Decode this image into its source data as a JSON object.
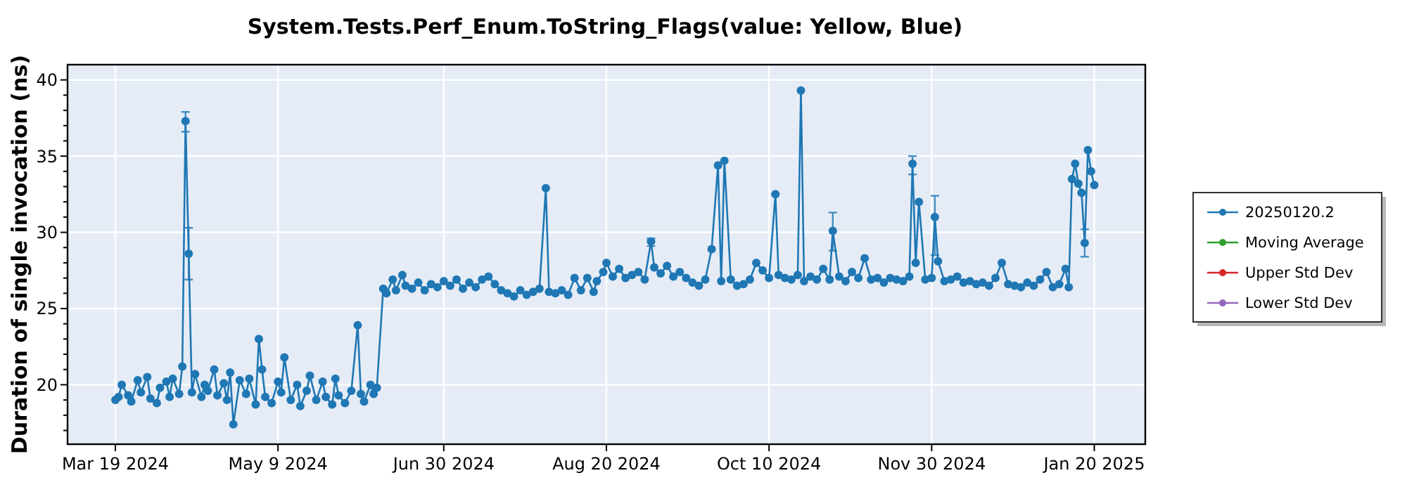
{
  "chart_data": {
    "type": "line",
    "title": "System.Tests.Perf_Enum.ToString_Flags(value: Yellow, Blue)",
    "ylabel": "Duration of single invocation (ns)",
    "x": [
      "2024-03-19",
      "2024-03-20",
      "2024-03-21",
      "2024-03-23",
      "2024-03-24",
      "2024-03-26",
      "2024-03-27",
      "2024-03-29",
      "2024-03-30",
      "2024-04-01",
      "2024-04-02",
      "2024-04-04",
      "2024-04-05",
      "2024-04-06",
      "2024-04-08",
      "2024-04-09",
      "2024-04-10",
      "2024-04-11",
      "2024-04-12",
      "2024-04-13",
      "2024-04-15",
      "2024-04-16",
      "2024-04-17",
      "2024-04-19",
      "2024-04-20",
      "2024-04-22",
      "2024-04-23",
      "2024-04-24",
      "2024-04-25",
      "2024-04-27",
      "2024-04-29",
      "2024-04-30",
      "2024-05-02",
      "2024-05-03",
      "2024-05-04",
      "2024-05-05",
      "2024-05-07",
      "2024-05-09",
      "2024-05-10",
      "2024-05-11",
      "2024-05-13",
      "2024-05-15",
      "2024-05-16",
      "2024-05-18",
      "2024-05-19",
      "2024-05-21",
      "2024-05-23",
      "2024-05-24",
      "2024-05-26",
      "2024-05-27",
      "2024-05-28",
      "2024-05-30",
      "2024-06-01",
      "2024-06-03",
      "2024-06-04",
      "2024-06-05",
      "2024-06-07",
      "2024-06-08",
      "2024-06-09",
      "2024-06-11",
      "2024-06-12",
      "2024-06-14",
      "2024-06-15",
      "2024-06-17",
      "2024-06-18",
      "2024-06-20",
      "2024-06-22",
      "2024-06-24",
      "2024-06-26",
      "2024-06-28",
      "2024-06-30",
      "2024-07-02",
      "2024-07-04",
      "2024-07-06",
      "2024-07-08",
      "2024-07-10",
      "2024-07-12",
      "2024-07-14",
      "2024-07-16",
      "2024-07-18",
      "2024-07-20",
      "2024-07-22",
      "2024-07-24",
      "2024-07-26",
      "2024-07-28",
      "2024-07-30",
      "2024-08-01",
      "2024-08-02",
      "2024-08-04",
      "2024-08-06",
      "2024-08-08",
      "2024-08-10",
      "2024-08-12",
      "2024-08-14",
      "2024-08-16",
      "2024-08-17",
      "2024-08-19",
      "2024-08-20",
      "2024-08-22",
      "2024-08-24",
      "2024-08-26",
      "2024-08-28",
      "2024-08-30",
      "2024-09-01",
      "2024-09-03",
      "2024-09-04",
      "2024-09-06",
      "2024-09-08",
      "2024-09-10",
      "2024-09-12",
      "2024-09-14",
      "2024-09-16",
      "2024-09-18",
      "2024-09-20",
      "2024-09-22",
      "2024-09-24",
      "2024-09-25",
      "2024-09-26",
      "2024-09-28",
      "2024-09-30",
      "2024-10-02",
      "2024-10-04",
      "2024-10-06",
      "2024-10-08",
      "2024-10-10",
      "2024-10-12",
      "2024-10-13",
      "2024-10-15",
      "2024-10-17",
      "2024-10-19",
      "2024-10-20",
      "2024-10-21",
      "2024-10-23",
      "2024-10-25",
      "2024-10-27",
      "2024-10-29",
      "2024-10-30",
      "2024-11-01",
      "2024-11-03",
      "2024-11-05",
      "2024-11-07",
      "2024-11-09",
      "2024-11-11",
      "2024-11-13",
      "2024-11-15",
      "2024-11-17",
      "2024-11-19",
      "2024-11-21",
      "2024-11-23",
      "2024-11-24",
      "2024-11-25",
      "2024-11-26",
      "2024-11-28",
      "2024-11-30",
      "2024-12-01",
      "2024-12-02",
      "2024-12-04",
      "2024-12-06",
      "2024-12-08",
      "2024-12-10",
      "2024-12-12",
      "2024-12-14",
      "2024-12-16",
      "2024-12-18",
      "2024-12-20",
      "2024-12-22",
      "2024-12-24",
      "2024-12-26",
      "2024-12-28",
      "2024-12-30",
      "2025-01-01",
      "2025-01-03",
      "2025-01-05",
      "2025-01-07",
      "2025-01-09",
      "2025-01-11",
      "2025-01-12",
      "2025-01-13",
      "2025-01-14",
      "2025-01-15",
      "2025-01-16",
      "2025-01-17",
      "2025-01-18",
      "2025-01-19",
      "2025-01-20"
    ],
    "series": [
      {
        "name": "20250120.2",
        "color": "#1f77b4",
        "values": [
          19.0,
          19.2,
          20.0,
          19.3,
          18.9,
          20.3,
          19.5,
          20.5,
          19.1,
          18.8,
          19.8,
          20.2,
          19.2,
          20.4,
          19.4,
          21.2,
          37.3,
          28.6,
          19.5,
          20.7,
          19.2,
          20.0,
          19.6,
          21.0,
          19.3,
          20.1,
          19.0,
          20.8,
          17.4,
          20.3,
          19.4,
          20.4,
          18.7,
          23.0,
          21.0,
          19.2,
          18.8,
          20.2,
          19.5,
          21.8,
          19.0,
          20.0,
          18.6,
          19.6,
          20.6,
          19.0,
          20.2,
          19.2,
          18.7,
          20.4,
          19.3,
          18.8,
          19.6,
          23.9,
          19.4,
          18.9,
          20.0,
          19.4,
          19.8,
          26.3,
          26.0,
          26.9,
          26.2,
          27.2,
          26.5,
          26.3,
          26.7,
          26.2,
          26.6,
          26.4,
          26.8,
          26.5,
          26.9,
          26.3,
          26.7,
          26.4,
          26.9,
          27.1,
          26.6,
          26.2,
          26.0,
          25.8,
          26.2,
          25.9,
          26.1,
          26.3,
          32.9,
          26.1,
          26.0,
          26.2,
          25.9,
          27.0,
          26.2,
          27.0,
          26.1,
          26.8,
          27.4,
          28.0,
          27.1,
          27.6,
          27.0,
          27.2,
          27.4,
          26.9,
          29.4,
          27.7,
          27.3,
          27.8,
          27.1,
          27.4,
          27.0,
          26.7,
          26.5,
          26.9,
          28.9,
          34.4,
          26.8,
          34.7,
          26.9,
          26.5,
          26.6,
          26.9,
          28.0,
          27.5,
          27.0,
          32.5,
          27.2,
          27.0,
          26.9,
          27.2,
          39.3,
          26.8,
          27.1,
          26.9,
          27.6,
          26.9,
          30.1,
          27.1,
          26.8,
          27.4,
          27.0,
          28.3,
          26.9,
          27.0,
          26.7,
          27.0,
          26.9,
          26.8,
          27.1,
          34.5,
          28.0,
          32.0,
          26.9,
          27.0,
          31.0,
          28.1,
          26.8,
          26.9,
          27.1,
          26.7,
          26.8,
          26.6,
          26.7,
          26.5,
          27.0,
          28.0,
          26.6,
          26.5,
          26.4,
          26.7,
          26.5,
          26.9,
          27.4,
          26.4,
          26.6,
          27.6,
          26.4,
          33.5,
          34.5,
          33.2,
          32.6,
          29.3,
          35.4,
          34.0,
          33.1
        ],
        "errors": [
          null,
          null,
          null,
          null,
          null,
          null,
          null,
          null,
          null,
          null,
          null,
          null,
          null,
          null,
          null,
          null,
          [
            36.6,
            37.9
          ],
          [
            26.9,
            30.3
          ],
          null,
          null,
          null,
          null,
          null,
          null,
          null,
          null,
          null,
          null,
          null,
          null,
          null,
          null,
          null,
          null,
          null,
          null,
          null,
          null,
          null,
          null,
          null,
          null,
          null,
          null,
          null,
          null,
          null,
          null,
          null,
          null,
          null,
          null,
          null,
          null,
          null,
          null,
          null,
          null,
          null,
          null,
          null,
          null,
          null,
          null,
          null,
          null,
          null,
          null,
          null,
          null,
          null,
          null,
          null,
          null,
          null,
          null,
          null,
          null,
          null,
          null,
          null,
          null,
          null,
          null,
          null,
          null,
          null,
          null,
          null,
          null,
          null,
          null,
          null,
          null,
          null,
          null,
          null,
          null,
          null,
          null,
          null,
          null,
          null,
          null,
          [
            29.1,
            29.6
          ],
          null,
          null,
          null,
          null,
          null,
          null,
          null,
          null,
          null,
          null,
          null,
          null,
          null,
          null,
          null,
          null,
          null,
          null,
          null,
          null,
          null,
          null,
          null,
          null,
          null,
          null,
          null,
          null,
          null,
          null,
          null,
          [
            28.8,
            31.3
          ],
          null,
          null,
          null,
          null,
          null,
          null,
          null,
          null,
          null,
          null,
          null,
          null,
          [
            33.8,
            35.0
          ],
          null,
          null,
          null,
          null,
          [
            28.5,
            32.4
          ],
          null,
          null,
          null,
          null,
          null,
          null,
          null,
          null,
          null,
          null,
          null,
          null,
          null,
          null,
          null,
          null,
          null,
          null,
          null,
          null,
          null,
          null,
          null,
          null,
          null,
          null,
          [
            28.4,
            30.2
          ],
          null,
          null,
          null
        ]
      },
      {
        "name": "Moving Average",
        "color": "#2ca02c",
        "values": [
          null,
          null,
          null,
          null,
          null,
          null,
          null,
          null,
          null,
          null,
          null,
          null,
          null,
          null,
          null,
          null,
          null,
          null,
          null,
          null,
          null,
          null,
          null,
          null,
          null,
          null,
          null,
          null,
          null,
          null,
          null,
          null,
          null,
          null,
          null,
          null,
          null,
          null,
          null,
          null,
          null,
          null,
          null,
          null,
          null,
          null,
          null,
          null,
          null,
          null,
          null,
          null,
          null,
          null,
          null,
          null,
          null,
          null,
          null,
          null,
          null,
          null,
          null,
          null,
          null,
          null,
          null,
          null,
          null,
          null,
          null,
          null,
          null,
          null,
          null,
          null,
          null,
          null,
          null,
          null,
          null,
          null,
          null,
          null,
          null,
          null,
          null,
          null,
          null,
          null,
          null,
          null,
          null,
          null,
          null,
          null,
          null,
          null,
          null,
          null,
          null,
          null,
          null,
          null,
          null,
          null,
          null,
          null,
          null,
          null,
          null,
          null,
          null,
          null,
          null,
          null,
          null,
          null,
          null,
          null,
          null,
          null,
          null,
          null,
          null,
          null,
          null,
          null,
          null,
          null,
          null,
          null,
          null,
          null,
          null,
          null,
          null,
          null,
          null,
          null,
          null,
          null,
          null,
          null,
          null,
          null,
          null,
          null,
          null,
          null,
          null,
          null,
          null,
          null,
          null,
          null,
          null,
          null,
          null,
          null,
          null,
          null,
          null,
          null,
          null,
          null,
          null,
          null,
          null,
          null,
          null,
          null,
          null,
          null,
          null,
          null,
          null,
          null,
          null,
          null,
          null,
          null,
          null,
          null,
          null
        ]
      },
      {
        "name": "Upper Std Dev",
        "color": "#d62728",
        "values": [
          null,
          null,
          null,
          null,
          null,
          null,
          null,
          null,
          null,
          null,
          null,
          null,
          null,
          null,
          null,
          null,
          null,
          null,
          null,
          null,
          null,
          null,
          null,
          null,
          null,
          null,
          null,
          null,
          null,
          null,
          null,
          null,
          null,
          null,
          null,
          null,
          null,
          null,
          null,
          null,
          null,
          null,
          null,
          null,
          null,
          null,
          null,
          null,
          null,
          null,
          null,
          null,
          null,
          null,
          null,
          null,
          null,
          null,
          null,
          null,
          null,
          null,
          null,
          null,
          null,
          null,
          null,
          null,
          null,
          null,
          null,
          null,
          null,
          null,
          null,
          null,
          null,
          null,
          null,
          null,
          null,
          null,
          null,
          null,
          null,
          null,
          null,
          null,
          null,
          null,
          null,
          null,
          null,
          null,
          null,
          null,
          null,
          null,
          null,
          null,
          null,
          null,
          null,
          null,
          null,
          null,
          null,
          null,
          null,
          null,
          null,
          null,
          null,
          null,
          null,
          null,
          null,
          null,
          null,
          null,
          null,
          null,
          null,
          null,
          null,
          null,
          null,
          null,
          null,
          null,
          null,
          null,
          null,
          null,
          null,
          null,
          null,
          null,
          null,
          null,
          null,
          null,
          null,
          null,
          null,
          null,
          null,
          null,
          null,
          null,
          null,
          null,
          null,
          null,
          null,
          null,
          null,
          null,
          null,
          null,
          null,
          null,
          null,
          null,
          null,
          null,
          null,
          null,
          null,
          null,
          null,
          null,
          null,
          null,
          null,
          null,
          null,
          null,
          null,
          null,
          null,
          null,
          null,
          null,
          null
        ]
      },
      {
        "name": "Lower Std Dev",
        "color": "#9467bd",
        "values": [
          null,
          null,
          null,
          null,
          null,
          null,
          null,
          null,
          null,
          null,
          null,
          null,
          null,
          null,
          null,
          null,
          null,
          null,
          null,
          null,
          null,
          null,
          null,
          null,
          null,
          null,
          null,
          null,
          null,
          null,
          null,
          null,
          null,
          null,
          null,
          null,
          null,
          null,
          null,
          null,
          null,
          null,
          null,
          null,
          null,
          null,
          null,
          null,
          null,
          null,
          null,
          null,
          null,
          null,
          null,
          null,
          null,
          null,
          null,
          null,
          null,
          null,
          null,
          null,
          null,
          null,
          null,
          null,
          null,
          null,
          null,
          null,
          null,
          null,
          null,
          null,
          null,
          null,
          null,
          null,
          null,
          null,
          null,
          null,
          null,
          null,
          null,
          null,
          null,
          null,
          null,
          null,
          null,
          null,
          null,
          null,
          null,
          null,
          null,
          null,
          null,
          null,
          null,
          null,
          null,
          null,
          null,
          null,
          null,
          null,
          null,
          null,
          null,
          null,
          null,
          null,
          null,
          null,
          null,
          null,
          null,
          null,
          null,
          null,
          null,
          null,
          null,
          null,
          null,
          null,
          null,
          null,
          null,
          null,
          null,
          null,
          null,
          null,
          null,
          null,
          null,
          null,
          null,
          null,
          null,
          null,
          null,
          null,
          null,
          null,
          null,
          null,
          null,
          null,
          null,
          null,
          null,
          null,
          null,
          null,
          null,
          null,
          null,
          null,
          null,
          null,
          null,
          null,
          null,
          null,
          null,
          null,
          null,
          null,
          null,
          null,
          null,
          null,
          null,
          null,
          null,
          null,
          null,
          null,
          null
        ]
      }
    ],
    "xlim": [
      "2024-03-04",
      "2025-02-05"
    ],
    "xticks": [
      {
        "value": "2024-03-19",
        "label": "Mar 19 2024"
      },
      {
        "value": "2024-05-09",
        "label": "May 9 2024"
      },
      {
        "value": "2024-06-30",
        "label": "Jun 30 2024"
      },
      {
        "value": "2024-08-20",
        "label": "Aug 20 2024"
      },
      {
        "value": "2024-10-10",
        "label": "Oct 10 2024"
      },
      {
        "value": "2024-11-30",
        "label": "Nov 30 2024"
      },
      {
        "value": "2025-01-20",
        "label": "Jan 20 2025"
      }
    ],
    "ylim": [
      16.1,
      41
    ],
    "yticks": [
      {
        "value": 17,
        "label": null
      },
      {
        "value": 18,
        "label": null
      },
      {
        "value": 19,
        "label": null
      },
      20,
      {
        "value": 21,
        "label": null
      },
      {
        "value": 22,
        "label": null
      },
      {
        "value": 23,
        "label": null
      },
      {
        "value": 24,
        "label": null
      },
      25,
      {
        "value": 26,
        "label": null
      },
      {
        "value": 27,
        "label": null
      },
      {
        "value": 28,
        "label": null
      },
      {
        "value": 29,
        "label": null
      },
      30,
      {
        "value": 31,
        "label": null
      },
      {
        "value": 32,
        "label": null
      },
      {
        "value": 33,
        "label": null
      },
      {
        "value": 34,
        "label": null
      },
      35,
      {
        "value": 36,
        "label": null
      },
      {
        "value": 37,
        "label": null
      },
      {
        "value": 38,
        "label": null
      },
      {
        "value": 39,
        "label": null
      },
      40
    ],
    "grid": true,
    "legend": "right",
    "marker": "circle",
    "line_style": "solid"
  }
}
